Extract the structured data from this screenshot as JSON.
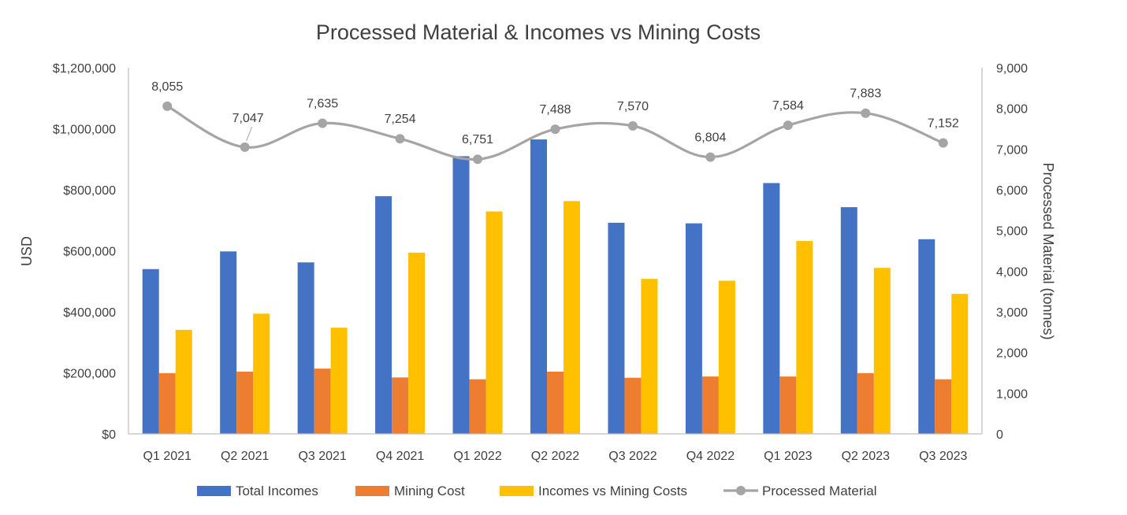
{
  "chart_data": {
    "type": "bar",
    "title": "Processed Material & Incomes vs Mining Costs",
    "categories": [
      "Q1 2021",
      "Q2 2021",
      "Q3 2021",
      "Q4 2021",
      "Q1 2022",
      "Q2 2022",
      "Q3 2022",
      "Q4 2022",
      "Q1 2023",
      "Q2 2023",
      "Q3 2023"
    ],
    "series": [
      {
        "name": "Total Incomes",
        "axis": "left",
        "kind": "bar",
        "color": "#4472C4",
        "values": [
          540000,
          598000,
          562000,
          779000,
          910000,
          965000,
          692000,
          690000,
          822000,
          743000,
          638000
        ]
      },
      {
        "name": "Mining Cost",
        "axis": "left",
        "kind": "bar",
        "color": "#ED7D31",
        "values": [
          199000,
          204000,
          214000,
          185000,
          179000,
          204000,
          184000,
          188000,
          188000,
          199000,
          179000
        ]
      },
      {
        "name": "Incomes vs Mining Costs",
        "axis": "left",
        "kind": "bar",
        "color": "#FFC000",
        "values": [
          341000,
          394000,
          348000,
          594000,
          729000,
          763000,
          508000,
          502000,
          632000,
          544000,
          459000
        ]
      },
      {
        "name": "Processed Material",
        "axis": "right",
        "kind": "line",
        "color": "#A5A5A5",
        "values": [
          8055,
          7047,
          7635,
          7254,
          6751,
          7488,
          7570,
          6804,
          7584,
          7883,
          7152
        ],
        "labels": [
          "8,055",
          "7,047",
          "7,635",
          "7,254",
          "6,751",
          "7,488",
          "7,570",
          "6,804",
          "7,584",
          "7,883",
          "7,152"
        ]
      }
    ],
    "y_left": {
      "label": "USD",
      "range": [
        0,
        1200000
      ],
      "ticks": [
        0,
        200000,
        400000,
        600000,
        800000,
        1000000,
        1200000
      ],
      "tick_labels": [
        "$0",
        "$200,000",
        "$400,000",
        "$600,000",
        "$800,000",
        "$1,000,000",
        "$1,200,000"
      ]
    },
    "y_right": {
      "label": "Processed Material (tonnes)",
      "range": [
        0,
        9000
      ],
      "ticks": [
        0,
        1000,
        2000,
        3000,
        4000,
        5000,
        6000,
        7000,
        8000,
        9000
      ],
      "tick_labels": [
        "0",
        "1,000",
        "2,000",
        "3,000",
        "4,000",
        "5,000",
        "6,000",
        "7,000",
        "8,000",
        "9,000"
      ]
    },
    "grid": false,
    "legend_position": "bottom"
  }
}
